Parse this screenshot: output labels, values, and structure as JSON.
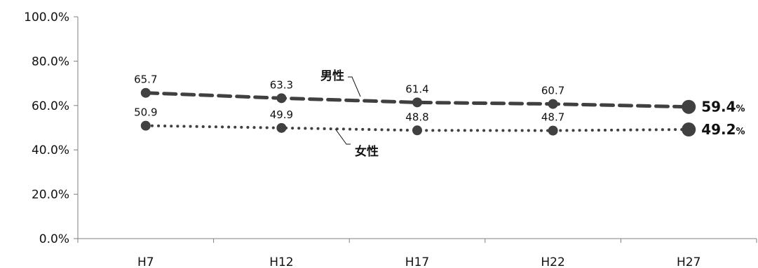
{
  "chart_data": {
    "type": "line",
    "categories": [
      "H7",
      "H12",
      "H17",
      "H22",
      "H27"
    ],
    "ylim": [
      0,
      100
    ],
    "ytick_labels": [
      "0.0%",
      "20.0%",
      "40.0%",
      "60.0%",
      "80.0%",
      "100.0%"
    ],
    "series": [
      {
        "name": "男性",
        "values": [
          65.7,
          63.3,
          61.4,
          60.7,
          59.4
        ],
        "data_labels": [
          "65.7",
          "63.3",
          "61.4",
          "60.7",
          "59.4"
        ],
        "line_style": "dashed",
        "color": "#404040"
      },
      {
        "name": "女性",
        "values": [
          50.9,
          49.9,
          48.8,
          48.7,
          49.2
        ],
        "data_labels": [
          "50.9",
          "49.9",
          "48.8",
          "48.7",
          "49.2"
        ],
        "line_style": "dotted",
        "color": "#404040"
      }
    ],
    "last_value_unit": "%",
    "grid": false,
    "legend": "inline"
  }
}
